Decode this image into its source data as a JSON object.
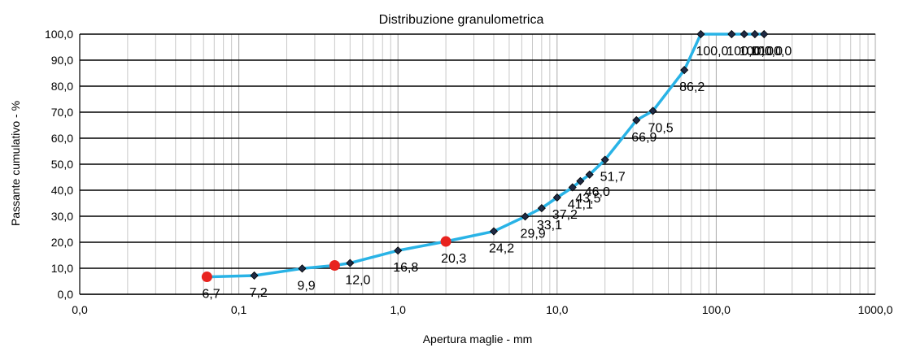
{
  "chart_data": {
    "type": "line",
    "title": "Distribuzione granulometrica",
    "xlabel": "Apertura maglie - mm",
    "ylabel": "Passante cumulativo - %",
    "x_scale": "log",
    "xlim": [
      0.01,
      1000
    ],
    "ylim": [
      0,
      100
    ],
    "x_ticks": [
      0.01,
      0.1,
      1,
      10,
      100,
      1000
    ],
    "x_tick_labels": [
      "0,0",
      "0,1",
      "1,0",
      "10,0",
      "100,0",
      "1000,0"
    ],
    "y_ticks": [
      0,
      10,
      20,
      30,
      40,
      50,
      60,
      70,
      80,
      90,
      100
    ],
    "y_tick_labels": [
      "0,0",
      "10,0",
      "20,0",
      "30,0",
      "40,0",
      "50,0",
      "60,0",
      "70,0",
      "80,0",
      "90,0",
      "100,0"
    ],
    "grid": true,
    "legend": "none",
    "line_color": "#29B3E6",
    "marker_color": "#1F2A44",
    "highlight_color": "#E8231F",
    "series": [
      {
        "x": [
          0.063,
          0.125,
          0.25,
          0.4,
          0.5,
          1,
          2,
          4,
          6.3,
          8,
          10,
          12.5,
          14,
          16,
          20,
          31.5,
          40,
          63,
          80,
          125,
          150,
          175,
          200
        ],
        "y": [
          6.7,
          7.2,
          9.9,
          11.1,
          12.0,
          16.8,
          20.3,
          24.2,
          29.9,
          33.1,
          37.2,
          41.1,
          43.5,
          46.0,
          51.7,
          66.9,
          70.5,
          86.2,
          100.0,
          100.0,
          100.0,
          100.0,
          100.0
        ],
        "labels": [
          "6,7",
          "7,2",
          "9,9",
          "",
          "12,0",
          "16,8",
          "20,3",
          "24,2",
          "29,9",
          "33,1",
          "37,2",
          "41,1",
          "43,5",
          "46,0",
          "51,7",
          "66,9",
          "70,5",
          "86,2",
          "100,0",
          "100,0",
          "100,0",
          "100,0",
          "100,0"
        ],
        "marker": [
          "circle",
          "diamond",
          "diamond",
          "circle",
          "diamond",
          "diamond",
          "circle",
          "diamond",
          "diamond",
          "diamond",
          "diamond",
          "diamond",
          "diamond",
          "diamond",
          "diamond",
          "diamond",
          "diamond",
          "diamond",
          "diamond",
          "diamond",
          "diamond",
          "diamond",
          "diamond"
        ]
      }
    ]
  }
}
